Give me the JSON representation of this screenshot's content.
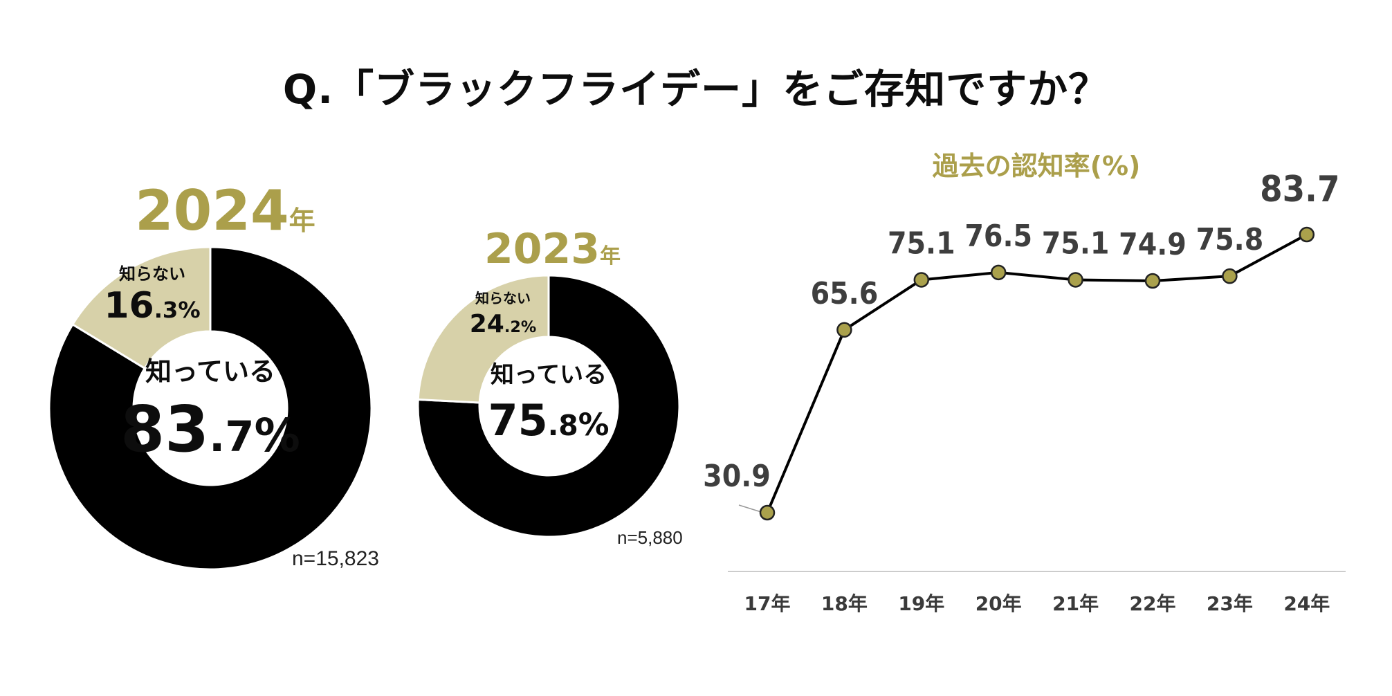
{
  "title": "Q.「ブラックフライデー」をご存知ですか？",
  "colors": {
    "known": "#000000",
    "unknown": "#d7d1a9",
    "accent": "#ab9f4b",
    "marker": "#aaa14c"
  },
  "chart_data": [
    {
      "type": "pie",
      "year": "2024",
      "year_suffix": "年",
      "slices": [
        {
          "label": "知っている",
          "value": 83.7,
          "int": "83",
          "dec": ".7",
          "pct": "%"
        },
        {
          "label": "知らない",
          "value": 16.3,
          "int": "16",
          "dec": ".3",
          "pct": "%"
        }
      ],
      "n": "n=15,823"
    },
    {
      "type": "pie",
      "year": "2023",
      "year_suffix": "年",
      "slices": [
        {
          "label": "知っている",
          "value": 75.8,
          "int": "75",
          "dec": ".8",
          "pct": "%"
        },
        {
          "label": "知らない",
          "value": 24.2,
          "int": "24",
          "dec": ".2",
          "pct": "%"
        }
      ],
      "n": "n=5,880"
    },
    {
      "type": "line",
      "title": "過去の認知率(%)",
      "categories": [
        "17年",
        "18年",
        "19年",
        "20年",
        "21年",
        "22年",
        "23年",
        "24年"
      ],
      "values": [
        30.9,
        65.6,
        75.1,
        76.5,
        75.1,
        74.9,
        75.8,
        83.7
      ],
      "labels": [
        "30.9",
        "65.6",
        "75.1",
        "76.5",
        "75.1",
        "74.9",
        "75.8",
        "83.7"
      ]
    }
  ]
}
